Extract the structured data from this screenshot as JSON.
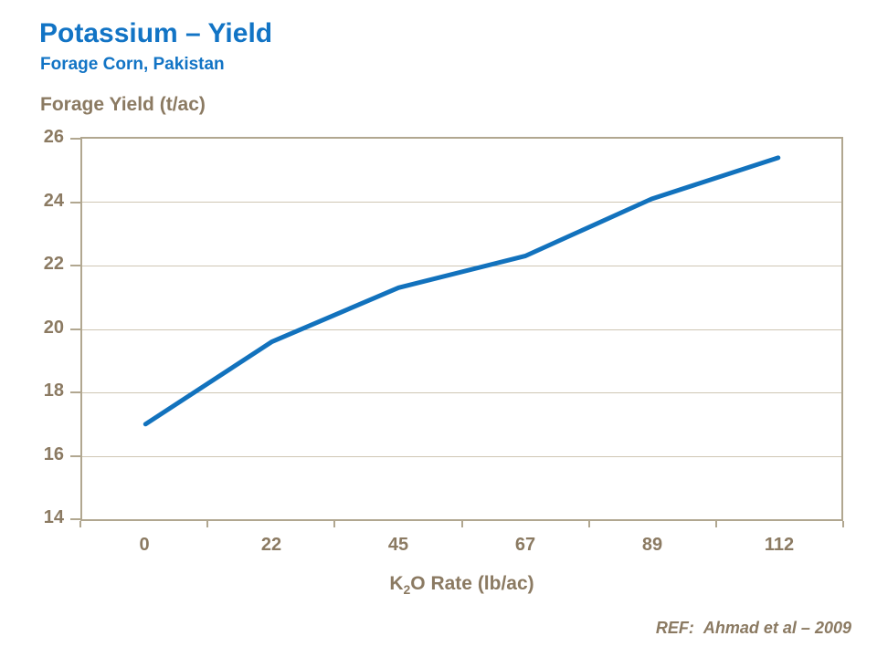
{
  "header": {
    "title": "Potassium – Yield",
    "subtitle": "Forage Corn, Pakistan"
  },
  "chart_data": {
    "type": "line",
    "title": "Potassium – Yield",
    "y_axis_title": "Forage Yield (t/ac)",
    "x_axis_title": {
      "pre": "K",
      "sub": "2",
      "post": "O Rate (lb/ac)"
    },
    "categories": [
      "0",
      "22",
      "45",
      "67",
      "89",
      "112"
    ],
    "series": [
      {
        "name": "Forage Yield",
        "values": [
          17.0,
          19.6,
          21.3,
          22.3,
          24.1,
          25.4
        ]
      }
    ],
    "xlabel": "K2O Rate (lb/ac)",
    "ylabel": "Forage Yield (t/ac)",
    "ylim": [
      14,
      26
    ],
    "yticks": [
      14,
      16,
      18,
      20,
      22,
      24,
      26
    ],
    "grid": true,
    "legend_position": "none",
    "colors": {
      "line": "#1272BD",
      "title_blue": "#1274C5",
      "axis_text_brown": "#8B7A62",
      "gridline": "#CFC6B4",
      "axis_line": "#B1A790"
    }
  },
  "footer": {
    "ref_label": "REF:",
    "ref_text": "Ahmad et al – 2009"
  }
}
